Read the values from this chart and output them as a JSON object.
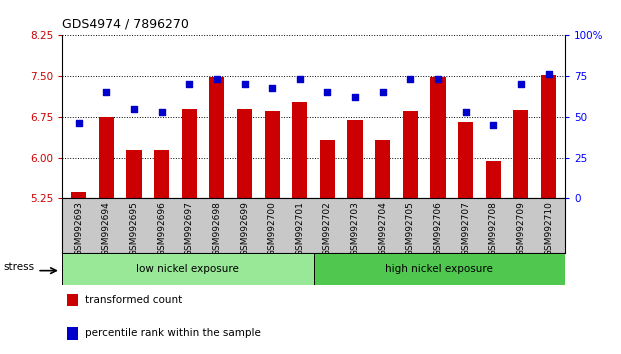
{
  "title": "GDS4974 / 7896270",
  "samples": [
    "GSM992693",
    "GSM992694",
    "GSM992695",
    "GSM992696",
    "GSM992697",
    "GSM992698",
    "GSM992699",
    "GSM992700",
    "GSM992701",
    "GSM992702",
    "GSM992703",
    "GSM992704",
    "GSM992705",
    "GSM992706",
    "GSM992707",
    "GSM992708",
    "GSM992709",
    "GSM992710"
  ],
  "bar_values": [
    5.37,
    6.74,
    6.13,
    6.13,
    6.9,
    7.48,
    6.9,
    6.85,
    7.02,
    6.32,
    6.7,
    6.33,
    6.85,
    7.48,
    6.65,
    5.93,
    6.88,
    7.52
  ],
  "dot_values_pct": [
    46,
    65,
    55,
    53,
    70,
    73,
    70,
    68,
    73,
    65,
    62,
    65,
    73,
    73,
    53,
    45,
    70,
    76
  ],
  "ylim_left": [
    5.25,
    8.25
  ],
  "ylim_right": [
    0,
    100
  ],
  "yticks_left": [
    5.25,
    6.0,
    6.75,
    7.5,
    8.25
  ],
  "yticks_right": [
    0,
    25,
    50,
    75,
    100
  ],
  "low_group": {
    "label": "low nickel exposure",
    "start": 0,
    "end": 9,
    "color": "#98E898"
  },
  "high_group": {
    "label": "high nickel exposure",
    "start": 9,
    "end": 18,
    "color": "#50C850"
  },
  "stress_label": "stress",
  "bar_color": "#CC0000",
  "dot_color": "#0000CC",
  "tick_area_color": "#C8C8C8",
  "legend_items": [
    {
      "color": "#CC0000",
      "label": "transformed count"
    },
    {
      "color": "#0000CC",
      "label": "percentile rank within the sample"
    }
  ]
}
